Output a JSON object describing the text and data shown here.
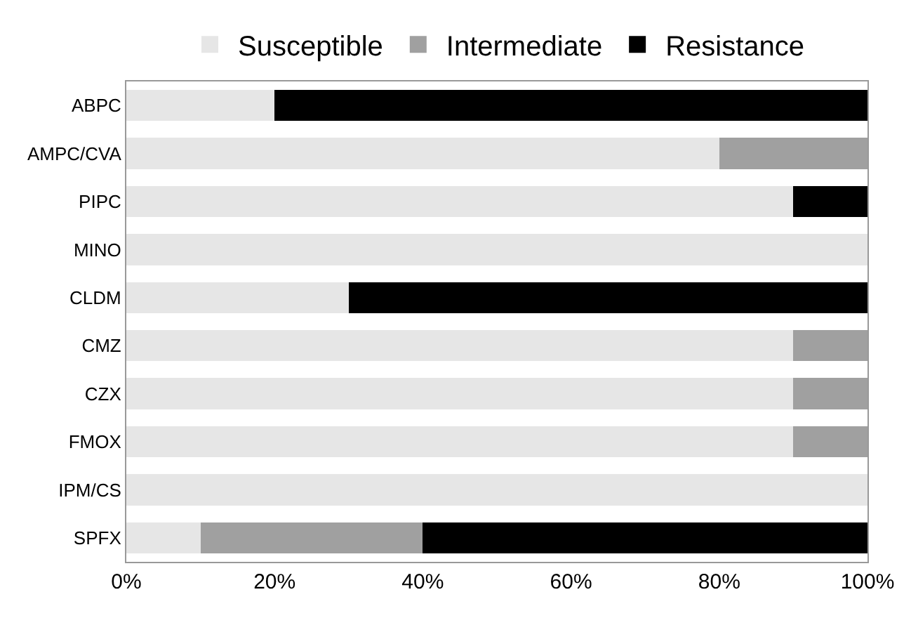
{
  "chart_data": {
    "type": "bar",
    "orientation": "horizontal",
    "stacked": true,
    "categories": [
      "ABPC",
      "AMPC/CVA",
      "PIPC",
      "MINO",
      "CLDM",
      "CMZ",
      "CZX",
      "FMOX",
      "IPM/CS",
      "SPFX"
    ],
    "series": [
      {
        "name": "Susceptible",
        "color": "#e6e6e6",
        "values": [
          20,
          80,
          90,
          100,
          30,
          90,
          90,
          90,
          100,
          10
        ]
      },
      {
        "name": "Intermediate",
        "color": "#a0a0a0",
        "values": [
          0,
          20,
          0,
          0,
          0,
          10,
          10,
          10,
          0,
          30
        ]
      },
      {
        "name": "Resistance",
        "color": "#000000",
        "values": [
          80,
          0,
          10,
          0,
          70,
          0,
          0,
          0,
          0,
          60
        ]
      }
    ],
    "xlim": [
      0,
      100
    ],
    "xticks": [
      {
        "value": 0,
        "label": "0%"
      },
      {
        "value": 20,
        "label": "20%"
      },
      {
        "value": 40,
        "label": "40%"
      },
      {
        "value": 60,
        "label": "60%"
      },
      {
        "value": 80,
        "label": "80%"
      },
      {
        "value": 100,
        "label": "100%"
      }
    ],
    "legend": "top"
  }
}
